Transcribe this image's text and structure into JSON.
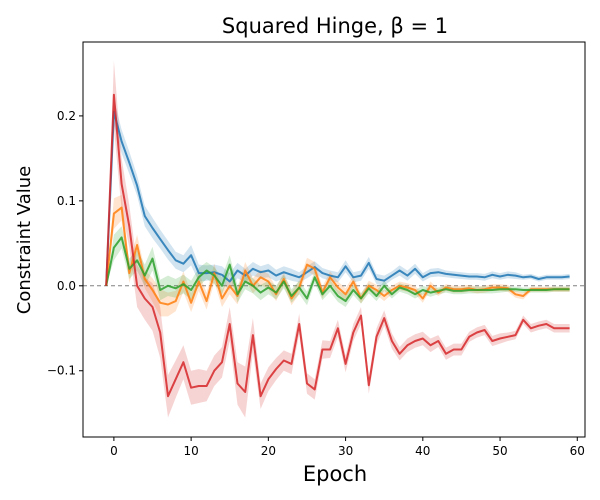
{
  "chart_data": {
    "type": "line",
    "title": "Squared Hinge, β =  1",
    "xlabel": "Epoch",
    "ylabel": "Constraint Value",
    "xlim": [
      -4,
      61
    ],
    "ylim": [
      -0.178,
      0.287
    ],
    "xticks": [
      0,
      10,
      20,
      30,
      40,
      50,
      60
    ],
    "xtick_labels": [
      "0",
      "10",
      "20",
      "30",
      "40",
      "50",
      "60"
    ],
    "yticks": [
      -0.1,
      0.0,
      0.1,
      0.2
    ],
    "ytick_labels": [
      "−0.1",
      "0.0",
      "0.1",
      "0.2"
    ],
    "grid": false,
    "legend": "none",
    "reference_line": {
      "y": 0.0,
      "style": "dashed",
      "color": "#808080"
    },
    "x": [
      -1,
      0,
      1,
      2,
      3,
      4,
      5,
      6,
      7,
      8,
      9,
      10,
      11,
      12,
      13,
      14,
      15,
      16,
      17,
      18,
      19,
      20,
      21,
      22,
      23,
      24,
      25,
      26,
      27,
      28,
      29,
      30,
      31,
      32,
      33,
      34,
      35,
      36,
      37,
      38,
      39,
      40,
      41,
      42,
      43,
      44,
      45,
      46,
      47,
      48,
      49,
      50,
      51,
      52,
      53,
      54,
      55,
      56,
      57,
      58,
      59
    ],
    "series": [
      {
        "color": "#1f77b4",
        "band_alpha": 0.2,
        "values": [
          0.0,
          0.205,
          0.17,
          0.145,
          0.118,
          0.082,
          0.068,
          0.055,
          0.042,
          0.03,
          0.026,
          0.036,
          0.015,
          0.015,
          0.016,
          0.013,
          0.005,
          0.018,
          0.012,
          0.02,
          0.016,
          0.018,
          0.012,
          0.016,
          0.013,
          0.01,
          0.016,
          0.022,
          0.015,
          0.012,
          0.01,
          0.023,
          0.01,
          0.012,
          0.027,
          0.008,
          0.006,
          0.012,
          0.018,
          0.012,
          0.02,
          0.01,
          0.015,
          0.016,
          0.014,
          0.013,
          0.012,
          0.011,
          0.011,
          0.01,
          0.013,
          0.011,
          0.013,
          0.012,
          0.01,
          0.011,
          0.008,
          0.01,
          0.01,
          0.01,
          0.011
        ],
        "band": [
          0.0,
          0.015,
          0.014,
          0.013,
          0.012,
          0.012,
          0.012,
          0.011,
          0.011,
          0.01,
          0.01,
          0.012,
          0.01,
          0.009,
          0.009,
          0.01,
          0.01,
          0.009,
          0.008,
          0.008,
          0.007,
          0.008,
          0.007,
          0.007,
          0.007,
          0.006,
          0.007,
          0.007,
          0.006,
          0.006,
          0.006,
          0.007,
          0.006,
          0.006,
          0.007,
          0.006,
          0.006,
          0.005,
          0.006,
          0.006,
          0.006,
          0.005,
          0.005,
          0.005,
          0.004,
          0.004,
          0.004,
          0.004,
          0.004,
          0.004,
          0.004,
          0.004,
          0.004,
          0.004,
          0.003,
          0.003,
          0.003,
          0.003,
          0.003,
          0.003,
          0.003
        ]
      },
      {
        "color": "#ff7f0e",
        "band_alpha": 0.2,
        "values": [
          0.0,
          0.085,
          0.092,
          0.015,
          0.048,
          0.008,
          -0.005,
          -0.02,
          -0.022,
          -0.018,
          0.005,
          -0.02,
          0.005,
          -0.018,
          0.015,
          -0.015,
          0.0,
          -0.012,
          0.018,
          0.0,
          0.01,
          0.005,
          -0.01,
          0.008,
          -0.015,
          -0.002,
          0.025,
          0.02,
          -0.008,
          0.01,
          -0.002,
          -0.01,
          0.005,
          -0.015,
          0.0,
          -0.005,
          -0.012,
          -0.005,
          0.0,
          -0.002,
          -0.005,
          -0.015,
          0.0,
          -0.008,
          -0.002,
          -0.004,
          -0.004,
          -0.003,
          -0.005,
          -0.004,
          -0.002,
          -0.002,
          -0.003,
          -0.01,
          -0.012,
          -0.004,
          -0.004,
          -0.004,
          -0.004,
          -0.004,
          -0.004
        ],
        "band": [
          0.0,
          0.018,
          0.015,
          0.012,
          0.012,
          0.011,
          0.014,
          0.016,
          0.014,
          0.012,
          0.012,
          0.011,
          0.011,
          0.01,
          0.011,
          0.01,
          0.01,
          0.01,
          0.01,
          0.009,
          0.009,
          0.009,
          0.008,
          0.008,
          0.008,
          0.008,
          0.008,
          0.008,
          0.007,
          0.007,
          0.007,
          0.007,
          0.007,
          0.006,
          0.006,
          0.006,
          0.006,
          0.005,
          0.005,
          0.005,
          0.005,
          0.005,
          0.005,
          0.004,
          0.004,
          0.004,
          0.004,
          0.004,
          0.004,
          0.004,
          0.004,
          0.004,
          0.004,
          0.004,
          0.004,
          0.003,
          0.003,
          0.003,
          0.003,
          0.003,
          0.003
        ]
      },
      {
        "color": "#2ca02c",
        "band_alpha": 0.2,
        "values": [
          0.0,
          0.045,
          0.057,
          0.02,
          0.03,
          0.012,
          0.032,
          -0.005,
          0.0,
          -0.003,
          0.002,
          -0.005,
          0.01,
          0.018,
          0.012,
          0.0,
          0.025,
          -0.01,
          0.005,
          0.0,
          -0.008,
          -0.002,
          -0.008,
          0.005,
          -0.012,
          -0.002,
          -0.015,
          0.01,
          -0.01,
          0.0,
          -0.012,
          -0.018,
          -0.005,
          -0.015,
          -0.003,
          -0.012,
          0.0,
          -0.01,
          -0.002,
          -0.005,
          -0.01,
          -0.005,
          -0.008,
          -0.006,
          -0.004,
          -0.006,
          -0.006,
          -0.005,
          -0.005,
          -0.005,
          -0.005,
          -0.004,
          -0.004,
          -0.004,
          -0.005,
          -0.005,
          -0.005,
          -0.005,
          -0.004,
          -0.004,
          -0.004
        ],
        "band": [
          0.0,
          0.015,
          0.013,
          0.012,
          0.012,
          0.013,
          0.014,
          0.012,
          0.012,
          0.011,
          0.011,
          0.011,
          0.011,
          0.01,
          0.01,
          0.01,
          0.011,
          0.01,
          0.009,
          0.009,
          0.009,
          0.008,
          0.008,
          0.008,
          0.008,
          0.008,
          0.008,
          0.007,
          0.007,
          0.007,
          0.007,
          0.007,
          0.006,
          0.006,
          0.006,
          0.006,
          0.006,
          0.005,
          0.005,
          0.005,
          0.005,
          0.005,
          0.005,
          0.004,
          0.004,
          0.004,
          0.004,
          0.004,
          0.004,
          0.004,
          0.004,
          0.004,
          0.003,
          0.003,
          0.003,
          0.003,
          0.003,
          0.003,
          0.003,
          0.003,
          0.003
        ]
      },
      {
        "color": "#d62728",
        "band_alpha": 0.2,
        "values": [
          0.0,
          0.225,
          0.12,
          0.07,
          0.0,
          -0.015,
          -0.025,
          -0.055,
          -0.13,
          -0.11,
          -0.09,
          -0.12,
          -0.118,
          -0.118,
          -0.1,
          -0.09,
          -0.045,
          -0.115,
          -0.125,
          -0.058,
          -0.13,
          -0.11,
          -0.098,
          -0.088,
          -0.092,
          -0.045,
          -0.115,
          -0.122,
          -0.075,
          -0.075,
          -0.05,
          -0.092,
          -0.055,
          -0.035,
          -0.117,
          -0.06,
          -0.038,
          -0.065,
          -0.08,
          -0.07,
          -0.065,
          -0.062,
          -0.07,
          -0.065,
          -0.08,
          -0.075,
          -0.075,
          -0.06,
          -0.055,
          -0.052,
          -0.065,
          -0.062,
          -0.06,
          -0.058,
          -0.04,
          -0.05,
          -0.047,
          -0.045,
          -0.05,
          -0.05,
          -0.05
        ],
        "band": [
          0.0,
          0.04,
          0.03,
          0.025,
          0.025,
          0.025,
          0.028,
          0.03,
          0.025,
          0.022,
          0.02,
          0.02,
          0.02,
          0.018,
          0.018,
          0.018,
          0.02,
          0.025,
          0.03,
          0.02,
          0.015,
          0.014,
          0.013,
          0.012,
          0.012,
          0.012,
          0.012,
          0.012,
          0.011,
          0.01,
          0.01,
          0.01,
          0.01,
          0.01,
          0.01,
          0.01,
          0.009,
          0.009,
          0.008,
          0.008,
          0.008,
          0.008,
          0.008,
          0.007,
          0.007,
          0.007,
          0.007,
          0.006,
          0.006,
          0.006,
          0.006,
          0.006,
          0.005,
          0.005,
          0.005,
          0.005,
          0.005,
          0.005,
          0.005,
          0.005,
          0.005
        ]
      }
    ]
  }
}
